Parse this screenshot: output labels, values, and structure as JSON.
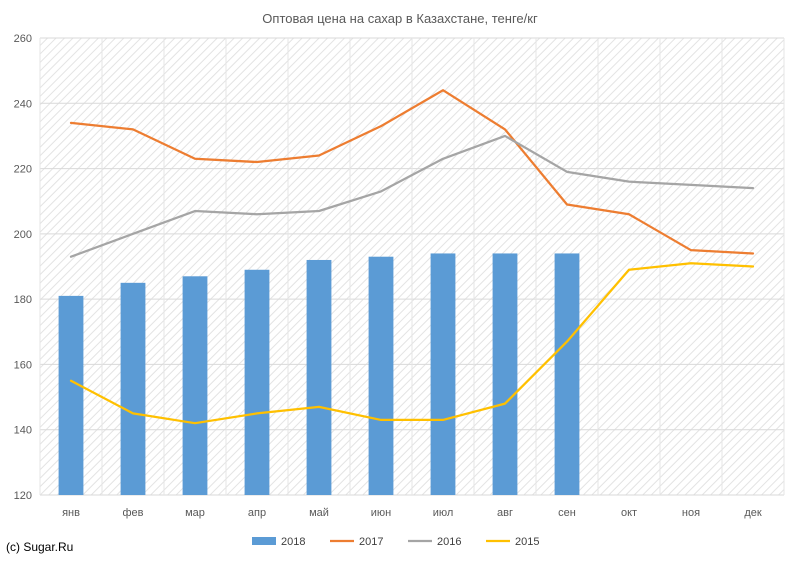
{
  "chart_data": {
    "type": "bar",
    "title": "Оптовая цена на сахар в Казахстане, тенге/кг",
    "xlabel": "",
    "ylabel": "",
    "ylim": [
      120,
      260
    ],
    "yticks": [
      120,
      140,
      160,
      180,
      200,
      220,
      240,
      260
    ],
    "categories": [
      "янв",
      "фев",
      "мар",
      "апр",
      "май",
      "июн",
      "июл",
      "авг",
      "сен",
      "окт",
      "ноя",
      "дек"
    ],
    "grid": true,
    "legend_position": "bottom",
    "series": [
      {
        "name": "2018",
        "kind": "bar",
        "color": "#5B9BD5",
        "values": [
          181,
          185,
          187,
          189,
          192,
          193,
          194,
          194,
          194,
          null,
          null,
          null
        ]
      },
      {
        "name": "2017",
        "kind": "line",
        "color": "#ED7D31",
        "values": [
          234,
          232,
          223,
          222,
          224,
          233,
          244,
          232,
          209,
          206,
          195,
          194
        ]
      },
      {
        "name": "2016",
        "kind": "line",
        "color": "#A5A5A5",
        "values": [
          193,
          200,
          207,
          206,
          207,
          213,
          223,
          230,
          219,
          216,
          215,
          214
        ]
      },
      {
        "name": "2015",
        "kind": "line",
        "color": "#FFC000",
        "values": [
          155,
          145,
          142,
          145,
          147,
          143,
          143,
          148,
          167,
          189,
          191,
          190
        ]
      }
    ]
  },
  "credit": "(c) Sugar.Ru"
}
